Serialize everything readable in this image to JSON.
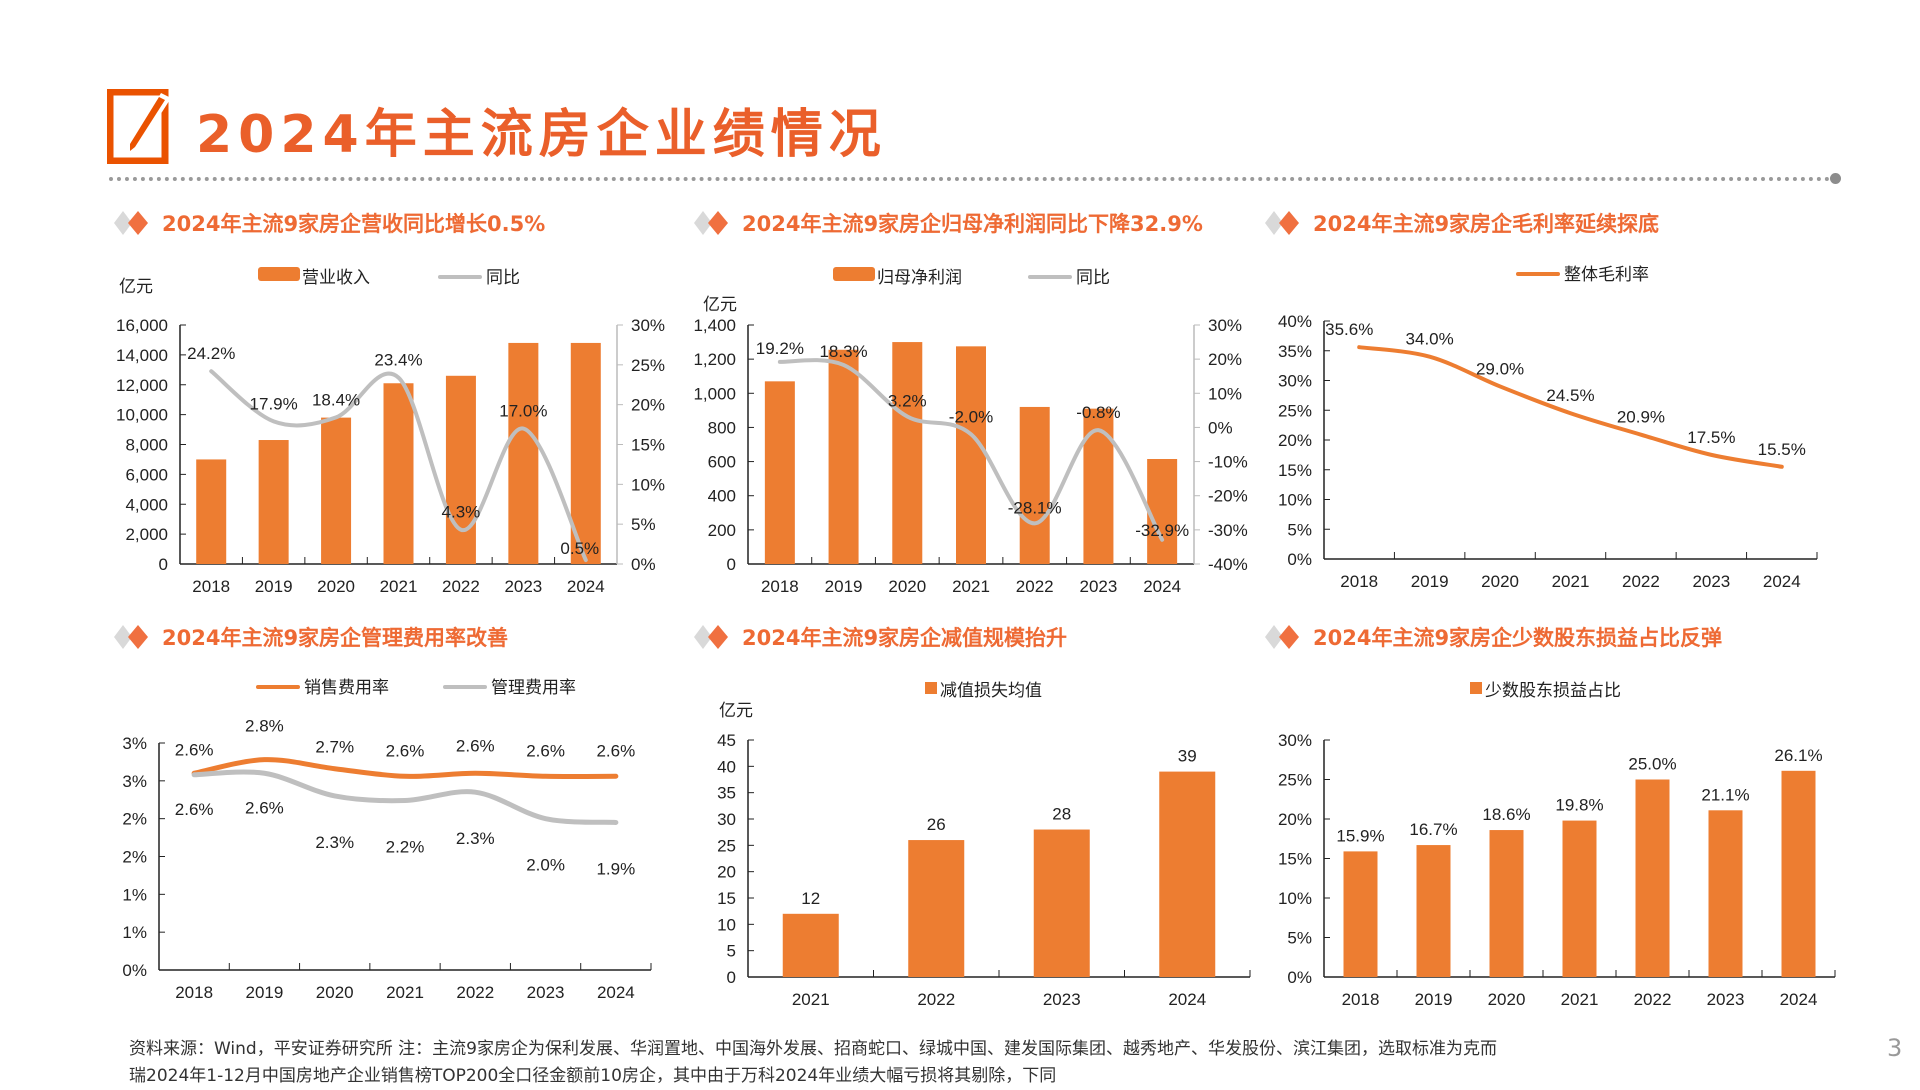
{
  "page": {
    "title": "2024年主流房企业绩情况",
    "page_number": "3",
    "footer_line1": "资料来源：Wind，平安证券研究所 注：主流9家房企为保利发展、华润置地、中国海外发展、招商蛇口、绿城中国、建发国际集团、越秀地产、华发股份、滨江集团，选取标准为克而",
    "footer_line2": "瑞2024年1-12月中国房地产企业销售榜TOP200全口径金额前10房企，其中由于万科2024年业绩大幅亏损将其剔除，下同"
  },
  "colors": {
    "accent": "#ED7D31",
    "title": "#EA5F2A",
    "gray": "#BFBFBF"
  },
  "sections": [
    {
      "title": "2024年主流9家房企营收同比增长0.5%"
    },
    {
      "title": "2024年主流9家房企归母净利润同比下降32.9%"
    },
    {
      "title": "2024年主流9家房企毛利率延续探底"
    },
    {
      "title": "2024年主流9家房企管理费用率改善"
    },
    {
      "title": "2024年主流9家房企减值规模抬升"
    },
    {
      "title": "2024年主流9家房企少数股东损益占比反弹"
    }
  ],
  "chart_data": [
    {
      "type": "bar+line",
      "unit_label": "亿元",
      "categories": [
        "2018",
        "2019",
        "2020",
        "2021",
        "2022",
        "2023",
        "2024"
      ],
      "series": [
        {
          "name": "营业收入",
          "type": "bar",
          "axis": "left",
          "values": [
            7000,
            8300,
            9800,
            12100,
            12600,
            14800,
            14800
          ]
        },
        {
          "name": "同比",
          "type": "line",
          "axis": "right",
          "values": [
            24.2,
            17.9,
            18.4,
            23.4,
            4.3,
            17.0,
            0.5
          ],
          "labels": [
            "24.2%",
            "17.9%",
            "18.4%",
            "23.4%",
            "4.3%",
            "17.0%",
            "0.5%"
          ]
        }
      ],
      "ylim": [
        0,
        16000
      ],
      "yticks": [
        "0",
        "2,000",
        "4,000",
        "6,000",
        "8,000",
        "10,000",
        "12,000",
        "14,000",
        "16,000"
      ],
      "y2lim": [
        0,
        30
      ],
      "y2ticks": [
        "0%",
        "5%",
        "10%",
        "15%",
        "20%",
        "25%",
        "30%"
      ],
      "legend": "top"
    },
    {
      "type": "bar+line",
      "unit_label": "亿元",
      "categories": [
        "2018",
        "2019",
        "2020",
        "2021",
        "2022",
        "2023",
        "2024"
      ],
      "series": [
        {
          "name": "归母净利润",
          "type": "bar",
          "axis": "left",
          "values": [
            1070,
            1255,
            1300,
            1275,
            920,
            910,
            615
          ]
        },
        {
          "name": "同比",
          "type": "line",
          "axis": "right",
          "values": [
            19.2,
            18.3,
            3.2,
            -2.0,
            -28.1,
            -0.8,
            -32.9
          ],
          "labels": [
            "19.2%",
            "18.3%",
            "3.2%",
            "-2.0%",
            "-28.1%",
            "-0.8%",
            "-32.9%"
          ]
        }
      ],
      "ylim": [
        0,
        1400
      ],
      "yticks": [
        "0",
        "200",
        "400",
        "600",
        "800",
        "1,000",
        "1,200",
        "1,400"
      ],
      "y2lim": [
        -40,
        30
      ],
      "y2ticks": [
        "-40%",
        "-30%",
        "-20%",
        "-10%",
        "0%",
        "10%",
        "20%",
        "30%"
      ],
      "legend": "top"
    },
    {
      "type": "line",
      "categories": [
        "2018",
        "2019",
        "2020",
        "2021",
        "2022",
        "2023",
        "2024"
      ],
      "series": [
        {
          "name": "整体毛利率",
          "values": [
            35.6,
            34.0,
            29.0,
            24.5,
            20.9,
            17.5,
            15.5
          ],
          "labels": [
            "35.6%",
            "34.0%",
            "29.0%",
            "24.5%",
            "20.9%",
            "17.5%",
            "15.5%"
          ]
        }
      ],
      "ylim": [
        0,
        40
      ],
      "yticks": [
        "0%",
        "5%",
        "10%",
        "15%",
        "20%",
        "25%",
        "30%",
        "35%",
        "40%"
      ],
      "legend": "top"
    },
    {
      "type": "line",
      "categories": [
        "2018",
        "2019",
        "2020",
        "2021",
        "2022",
        "2023",
        "2024"
      ],
      "series": [
        {
          "name": "销售费用率",
          "values": [
            2.6,
            2.78,
            2.66,
            2.56,
            2.6,
            2.56,
            2.56
          ],
          "labels": [
            "2.6%",
            "2.8%",
            "2.7%",
            "2.6%",
            "2.6%",
            "2.6%",
            "2.6%"
          ]
        },
        {
          "name": "管理费用率",
          "values": [
            2.58,
            2.6,
            2.3,
            2.24,
            2.35,
            2.0,
            1.95
          ],
          "labels": [
            "2.6%",
            "2.6%",
            "2.3%",
            "2.2%",
            "2.3%",
            "2.0%",
            "1.9%"
          ]
        }
      ],
      "ylim": [
        0,
        3
      ],
      "yticks": [
        "0%",
        "1%",
        "1%",
        "2%",
        "2%",
        "3%",
        "3%"
      ],
      "legend": "top"
    },
    {
      "type": "bar",
      "unit_label": "亿元",
      "categories": [
        "2021",
        "2022",
        "2023",
        "2024"
      ],
      "series": [
        {
          "name": "减值损失均值",
          "values": [
            12,
            26,
            28,
            39
          ],
          "labels": [
            "12",
            "26",
            "28",
            "39"
          ]
        }
      ],
      "ylim": [
        0,
        45
      ],
      "yticks": [
        "0",
        "5",
        "10",
        "15",
        "20",
        "25",
        "30",
        "35",
        "40",
        "45"
      ],
      "legend": "top"
    },
    {
      "type": "bar",
      "categories": [
        "2018",
        "2019",
        "2020",
        "2021",
        "2022",
        "2023",
        "2024"
      ],
      "series": [
        {
          "name": "少数股东损益占比",
          "values": [
            15.9,
            16.7,
            18.6,
            19.8,
            25.0,
            21.1,
            26.1
          ],
          "labels": [
            "15.9%",
            "16.7%",
            "18.6%",
            "19.8%",
            "25.0%",
            "21.1%",
            "26.1%"
          ]
        }
      ],
      "ylim": [
        0,
        30
      ],
      "yticks": [
        "0%",
        "5%",
        "10%",
        "15%",
        "20%",
        "25%",
        "30%"
      ],
      "legend": "top"
    }
  ]
}
